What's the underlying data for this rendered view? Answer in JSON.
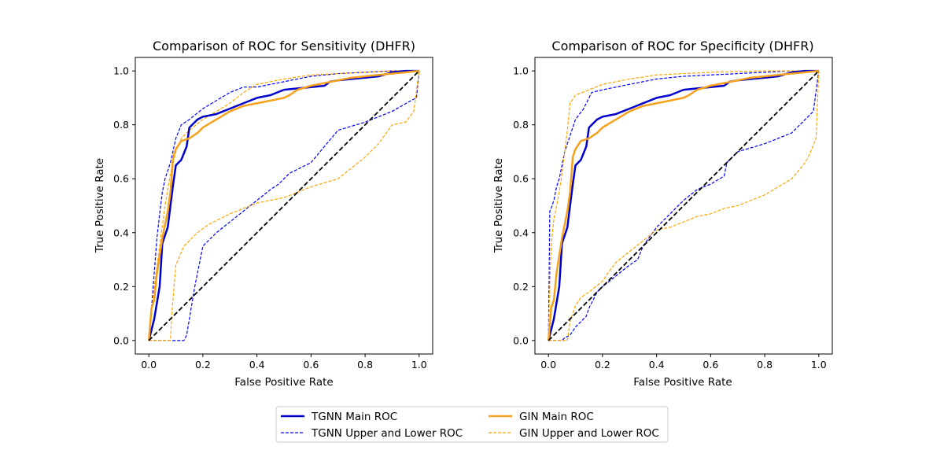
{
  "legend": {
    "entries": [
      {
        "label": "TGNN Main ROC",
        "color": "#0000cc",
        "style": "solid"
      },
      {
        "label": "TGNN Upper and Lower ROC",
        "color": "#0000ff",
        "style": "dashed"
      },
      {
        "label": "GIN Main ROC",
        "color": "#f5a11c",
        "style": "solid"
      },
      {
        "label": "GIN Upper and Lower ROC",
        "color": "#ffa500",
        "style": "dashed"
      }
    ]
  },
  "chart_data": [
    {
      "type": "line",
      "title": "Comparison of ROC for Sensitivity (DHFR)",
      "xlabel": "False Positive Rate",
      "ylabel": "True Positive Rate",
      "xlim": [
        -0.05,
        1.05
      ],
      "ylim": [
        -0.05,
        1.05
      ],
      "xticks": [
        0.0,
        0.2,
        0.4,
        0.6,
        0.8,
        1.0
      ],
      "yticks": [
        0.0,
        0.2,
        0.4,
        0.6,
        0.8,
        1.0
      ],
      "tick_labels": [
        "0.0",
        "0.2",
        "0.4",
        "0.6",
        "0.8",
        "1.0"
      ],
      "series": [
        {
          "name": "TGNN Upper ROC",
          "color": "#0000ff",
          "style": "dashed",
          "x": [
            0,
            0.01,
            0.02,
            0.03,
            0.04,
            0.05,
            0.06,
            0.07,
            0.08,
            0.1,
            0.12,
            0.15,
            0.2,
            0.25,
            0.3,
            0.35,
            0.4,
            0.5,
            0.6,
            0.7,
            0.8,
            0.9,
            1.0
          ],
          "y": [
            0,
            0.12,
            0.25,
            0.38,
            0.47,
            0.55,
            0.6,
            0.63,
            0.66,
            0.75,
            0.8,
            0.82,
            0.86,
            0.89,
            0.92,
            0.94,
            0.94,
            0.96,
            0.98,
            0.99,
            0.995,
            1.0,
            1.0
          ]
        },
        {
          "name": "TGNN Lower ROC",
          "color": "#0000ff",
          "style": "dashed",
          "x": [
            0,
            0.13,
            0.14,
            0.17,
            0.2,
            0.25,
            0.3,
            0.35,
            0.4,
            0.45,
            0.48,
            0.52,
            0.6,
            0.65,
            0.7,
            0.8,
            0.9,
            0.97,
            0.99,
            1.0
          ],
          "y": [
            0,
            0,
            0.02,
            0.2,
            0.35,
            0.4,
            0.44,
            0.48,
            0.52,
            0.56,
            0.58,
            0.62,
            0.66,
            0.72,
            0.78,
            0.81,
            0.85,
            0.89,
            0.9,
            1.0
          ]
        },
        {
          "name": "GIN Upper ROC",
          "color": "#ffa500",
          "style": "dashed",
          "x": [
            0,
            0.01,
            0.02,
            0.04,
            0.06,
            0.08,
            0.1,
            0.12,
            0.15,
            0.2,
            0.25,
            0.3,
            0.35,
            0.4,
            0.5,
            0.6,
            0.7,
            0.8,
            0.9,
            1.0
          ],
          "y": [
            0,
            0.1,
            0.2,
            0.35,
            0.5,
            0.62,
            0.7,
            0.75,
            0.78,
            0.82,
            0.85,
            0.88,
            0.92,
            0.95,
            0.97,
            0.985,
            0.99,
            0.995,
            1.0,
            1.0
          ]
        },
        {
          "name": "GIN Lower ROC",
          "color": "#ffa500",
          "style": "dashed",
          "x": [
            0,
            0.05,
            0.08,
            0.085,
            0.1,
            0.13,
            0.18,
            0.22,
            0.3,
            0.4,
            0.5,
            0.6,
            0.7,
            0.75,
            0.8,
            0.85,
            0.9,
            0.95,
            0.98,
            1.0
          ],
          "y": [
            0,
            0,
            0,
            0.1,
            0.28,
            0.35,
            0.4,
            0.43,
            0.47,
            0.51,
            0.53,
            0.57,
            0.6,
            0.64,
            0.68,
            0.73,
            0.8,
            0.81,
            0.85,
            1.0
          ]
        },
        {
          "name": "TGNN Main ROC",
          "color": "#0000cc",
          "style": "solid",
          "x": [
            0,
            0.02,
            0.03,
            0.04,
            0.05,
            0.07,
            0.08,
            0.09,
            0.1,
            0.12,
            0.14,
            0.15,
            0.18,
            0.2,
            0.25,
            0.3,
            0.35,
            0.4,
            0.45,
            0.5,
            0.55,
            0.6,
            0.65,
            0.67,
            0.7,
            0.75,
            0.8,
            0.85,
            0.9,
            0.95,
            1.0
          ],
          "y": [
            0,
            0.08,
            0.14,
            0.2,
            0.36,
            0.42,
            0.5,
            0.58,
            0.65,
            0.67,
            0.72,
            0.79,
            0.82,
            0.83,
            0.84,
            0.86,
            0.88,
            0.9,
            0.91,
            0.93,
            0.935,
            0.94,
            0.945,
            0.96,
            0.965,
            0.97,
            0.975,
            0.98,
            0.995,
            1.0,
            1.0
          ]
        },
        {
          "name": "GIN Main ROC",
          "color": "#f5a11c",
          "style": "solid",
          "x": [
            0,
            0.01,
            0.02,
            0.03,
            0.05,
            0.07,
            0.08,
            0.09,
            0.1,
            0.12,
            0.15,
            0.18,
            0.2,
            0.25,
            0.3,
            0.35,
            0.4,
            0.45,
            0.5,
            0.52,
            0.55,
            0.6,
            0.65,
            0.7,
            0.75,
            0.8,
            0.85,
            0.9,
            0.95,
            1.0
          ],
          "y": [
            0,
            0.12,
            0.15,
            0.25,
            0.38,
            0.48,
            0.55,
            0.68,
            0.71,
            0.74,
            0.75,
            0.77,
            0.79,
            0.82,
            0.85,
            0.87,
            0.88,
            0.89,
            0.9,
            0.91,
            0.93,
            0.945,
            0.955,
            0.965,
            0.975,
            0.98,
            0.985,
            0.99,
            0.995,
            1.0
          ]
        },
        {
          "name": "Diagonal",
          "color": "#000000",
          "style": "dashed",
          "x": [
            0,
            1
          ],
          "y": [
            0,
            1
          ]
        }
      ]
    },
    {
      "type": "line",
      "title": "Comparison of ROC for Specificity (DHFR)",
      "xlabel": "False Positive Rate",
      "ylabel": "True Positive Rate",
      "xlim": [
        -0.05,
        1.05
      ],
      "ylim": [
        -0.05,
        1.05
      ],
      "xticks": [
        0.0,
        0.2,
        0.4,
        0.6,
        0.8,
        1.0
      ],
      "yticks": [
        0.0,
        0.2,
        0.4,
        0.6,
        0.8,
        1.0
      ],
      "tick_labels": [
        "0.0",
        "0.2",
        "0.4",
        "0.6",
        "0.8",
        "1.0"
      ],
      "series": [
        {
          "name": "TGNN Upper ROC",
          "color": "#0000ff",
          "style": "dashed",
          "x": [
            0,
            0.005,
            0.01,
            0.02,
            0.03,
            0.04,
            0.05,
            0.06,
            0.08,
            0.1,
            0.13,
            0.16,
            0.2,
            0.3,
            0.4,
            0.5,
            0.6,
            0.7,
            0.8,
            0.9,
            1.0
          ],
          "y": [
            0,
            0.48,
            0.49,
            0.52,
            0.57,
            0.6,
            0.65,
            0.7,
            0.76,
            0.82,
            0.86,
            0.92,
            0.93,
            0.95,
            0.97,
            0.98,
            0.985,
            0.99,
            0.995,
            1.0,
            1.0
          ]
        },
        {
          "name": "TGNN Lower ROC",
          "color": "#0000ff",
          "style": "dashed",
          "x": [
            0,
            0.05,
            0.06,
            0.08,
            0.1,
            0.12,
            0.14,
            0.15,
            0.16,
            0.18,
            0.2,
            0.25,
            0.3,
            0.33,
            0.35,
            0.4,
            0.45,
            0.5,
            0.55,
            0.6,
            0.65,
            0.66,
            0.7,
            0.8,
            0.9,
            0.95,
            0.98,
            1.0
          ],
          "y": [
            0,
            0,
            0.01,
            0.02,
            0.05,
            0.07,
            0.09,
            0.12,
            0.14,
            0.18,
            0.2,
            0.24,
            0.28,
            0.3,
            0.35,
            0.42,
            0.47,
            0.52,
            0.56,
            0.58,
            0.61,
            0.66,
            0.7,
            0.73,
            0.77,
            0.82,
            0.85,
            1.0
          ]
        },
        {
          "name": "GIN Upper ROC",
          "color": "#ffa500",
          "style": "dashed",
          "x": [
            0,
            0.005,
            0.01,
            0.02,
            0.03,
            0.04,
            0.05,
            0.06,
            0.07,
            0.08,
            0.1,
            0.15,
            0.2,
            0.25,
            0.3,
            0.4,
            0.5,
            0.6,
            0.7,
            0.8,
            0.9,
            1.0
          ],
          "y": [
            0,
            0.2,
            0.35,
            0.45,
            0.5,
            0.55,
            0.62,
            0.7,
            0.78,
            0.88,
            0.91,
            0.93,
            0.95,
            0.96,
            0.97,
            0.985,
            0.99,
            0.995,
            0.998,
            1.0,
            1.0,
            1.0
          ]
        },
        {
          "name": "GIN Lower ROC",
          "color": "#ffa500",
          "style": "dashed",
          "x": [
            0,
            0.07,
            0.08,
            0.1,
            0.12,
            0.15,
            0.2,
            0.22,
            0.25,
            0.3,
            0.35,
            0.4,
            0.45,
            0.5,
            0.55,
            0.6,
            0.65,
            0.7,
            0.75,
            0.8,
            0.85,
            0.9,
            0.95,
            0.97,
            0.99,
            1.0
          ],
          "y": [
            0,
            0,
            0.07,
            0.13,
            0.16,
            0.18,
            0.22,
            0.25,
            0.29,
            0.33,
            0.37,
            0.41,
            0.42,
            0.44,
            0.46,
            0.47,
            0.49,
            0.5,
            0.52,
            0.54,
            0.57,
            0.6,
            0.66,
            0.7,
            0.75,
            1.0
          ]
        },
        {
          "name": "TGNN Main ROC",
          "color": "#0000cc",
          "style": "solid",
          "x": [
            0,
            0.02,
            0.03,
            0.04,
            0.05,
            0.07,
            0.08,
            0.09,
            0.1,
            0.12,
            0.14,
            0.15,
            0.18,
            0.2,
            0.25,
            0.3,
            0.35,
            0.4,
            0.45,
            0.5,
            0.55,
            0.6,
            0.65,
            0.67,
            0.7,
            0.75,
            0.8,
            0.85,
            0.9,
            0.95,
            1.0
          ],
          "y": [
            0,
            0.08,
            0.14,
            0.2,
            0.36,
            0.42,
            0.5,
            0.58,
            0.65,
            0.67,
            0.72,
            0.79,
            0.82,
            0.83,
            0.84,
            0.86,
            0.88,
            0.9,
            0.91,
            0.93,
            0.935,
            0.94,
            0.945,
            0.96,
            0.965,
            0.97,
            0.975,
            0.98,
            0.995,
            1.0,
            1.0
          ]
        },
        {
          "name": "GIN Main ROC",
          "color": "#f5a11c",
          "style": "solid",
          "x": [
            0,
            0.01,
            0.02,
            0.03,
            0.05,
            0.07,
            0.08,
            0.09,
            0.1,
            0.12,
            0.15,
            0.18,
            0.2,
            0.25,
            0.3,
            0.35,
            0.4,
            0.45,
            0.5,
            0.52,
            0.55,
            0.6,
            0.65,
            0.7,
            0.75,
            0.8,
            0.85,
            0.9,
            0.95,
            1.0
          ],
          "y": [
            0,
            0.12,
            0.15,
            0.25,
            0.38,
            0.48,
            0.55,
            0.68,
            0.71,
            0.74,
            0.75,
            0.77,
            0.79,
            0.82,
            0.85,
            0.87,
            0.88,
            0.89,
            0.9,
            0.91,
            0.93,
            0.945,
            0.955,
            0.965,
            0.975,
            0.98,
            0.985,
            0.99,
            0.995,
            1.0
          ]
        },
        {
          "name": "Diagonal",
          "color": "#000000",
          "style": "dashed",
          "x": [
            0,
            1
          ],
          "y": [
            0,
            1
          ]
        }
      ]
    }
  ]
}
